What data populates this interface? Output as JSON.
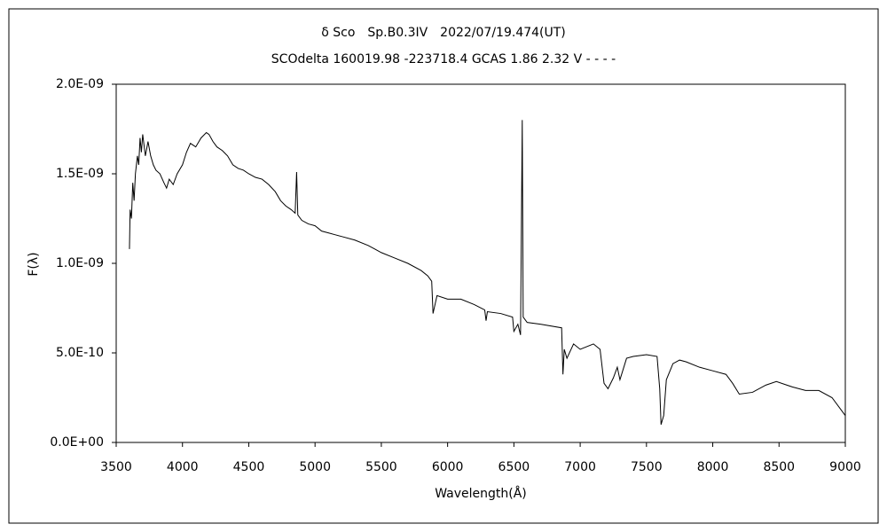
{
  "chart_data": {
    "type": "line",
    "title": "δ Sco　Sp.B0.3IV　2022/07/19.474(UT)",
    "subtitle": "SCOdelta 160019.98 -223718.4 GCAS 1.86 2.32 V - - - -",
    "xlabel": "Wavelength(Å)",
    "ylabel": "F(λ)",
    "color": "#000000",
    "x": [
      3600,
      3605,
      3615,
      3625,
      3635,
      3645,
      3660,
      3670,
      3680,
      3690,
      3700,
      3720,
      3740,
      3760,
      3780,
      3800,
      3830,
      3860,
      3880,
      3900,
      3930,
      3960,
      4000,
      4030,
      4060,
      4100,
      4140,
      4180,
      4200,
      4230,
      4260,
      4300,
      4340,
      4380,
      4420,
      4460,
      4500,
      4550,
      4600,
      4650,
      4700,
      4740,
      4780,
      4820,
      4850,
      4861,
      4870,
      4900,
      4950,
      5000,
      5050,
      5100,
      5150,
      5200,
      5300,
      5400,
      5450,
      5500,
      5600,
      5700,
      5800,
      5850,
      5880,
      5890,
      5920,
      6000,
      6100,
      6200,
      6280,
      6290,
      6300,
      6400,
      6490,
      6500,
      6530,
      6550,
      6563,
      6570,
      6600,
      6700,
      6860,
      6870,
      6880,
      6900,
      6950,
      7000,
      7100,
      7150,
      7180,
      7210,
      7250,
      7280,
      7300,
      7350,
      7400,
      7500,
      7580,
      7600,
      7610,
      7630,
      7650,
      7700,
      7750,
      7800,
      7900,
      8000,
      8100,
      8150,
      8200,
      8300,
      8400,
      8480,
      8600,
      8700,
      8800,
      8900,
      9000
    ],
    "values": [
      1.08e-09,
      1.3e-09,
      1.25e-09,
      1.45e-09,
      1.35e-09,
      1.5e-09,
      1.6e-09,
      1.55e-09,
      1.7e-09,
      1.62e-09,
      1.72e-09,
      1.6e-09,
      1.68e-09,
      1.6e-09,
      1.55e-09,
      1.52e-09,
      1.5e-09,
      1.45e-09,
      1.42e-09,
      1.47e-09,
      1.44e-09,
      1.5e-09,
      1.55e-09,
      1.62e-09,
      1.67e-09,
      1.65e-09,
      1.7e-09,
      1.73e-09,
      1.72e-09,
      1.68e-09,
      1.65e-09,
      1.63e-09,
      1.6e-09,
      1.55e-09,
      1.53e-09,
      1.52e-09,
      1.5e-09,
      1.48e-09,
      1.47e-09,
      1.44e-09,
      1.4e-09,
      1.35e-09,
      1.32e-09,
      1.3e-09,
      1.28e-09,
      1.51e-09,
      1.27e-09,
      1.24e-09,
      1.22e-09,
      1.21e-09,
      1.18e-09,
      1.17e-09,
      1.16e-09,
      1.15e-09,
      1.13e-09,
      1.1e-09,
      1.08e-09,
      1.06e-09,
      1.03e-09,
      1e-09,
      9.6e-10,
      9.3e-10,
      9e-10,
      7.2e-10,
      8.2e-10,
      8e-10,
      8e-10,
      7.7e-10,
      7.4e-10,
      6.8e-10,
      7.3e-10,
      7.2e-10,
      7e-10,
      6.2e-10,
      6.6e-10,
      6e-10,
      1.8e-09,
      7e-10,
      6.7e-10,
      6.6e-10,
      6.4e-10,
      3.8e-10,
      5.2e-10,
      4.7e-10,
      5.5e-10,
      5.2e-10,
      5.5e-10,
      5.2e-10,
      3.3e-10,
      3e-10,
      3.6e-10,
      4.2e-10,
      3.5e-10,
      4.7e-10,
      4.8e-10,
      4.9e-10,
      4.8e-10,
      3e-10,
      1e-10,
      1.5e-10,
      3.5e-10,
      4.4e-10,
      4.6e-10,
      4.5e-10,
      4.2e-10,
      4e-10,
      3.8e-10,
      3.3e-10,
      2.7e-10,
      2.8e-10,
      3.2e-10,
      3.4e-10,
      3.1e-10,
      2.9e-10,
      2.9e-10,
      2.5e-10,
      1.5e-10
    ],
    "xlim": [
      3500,
      9000
    ],
    "xticks": [
      3500,
      4000,
      4500,
      5000,
      5500,
      6000,
      6500,
      7000,
      7500,
      8000,
      8500,
      9000
    ],
    "ylim": [
      0,
      2e-09
    ],
    "yticks": [
      {
        "value": 0,
        "label": "0.0E+00"
      },
      {
        "value": 5e-10,
        "label": "5.0E-10"
      },
      {
        "value": 1e-09,
        "label": "1.0E-09"
      },
      {
        "value": 1.5e-09,
        "label": "1.5E-09"
      },
      {
        "value": 2e-09,
        "label": "2.0E-09"
      }
    ]
  }
}
